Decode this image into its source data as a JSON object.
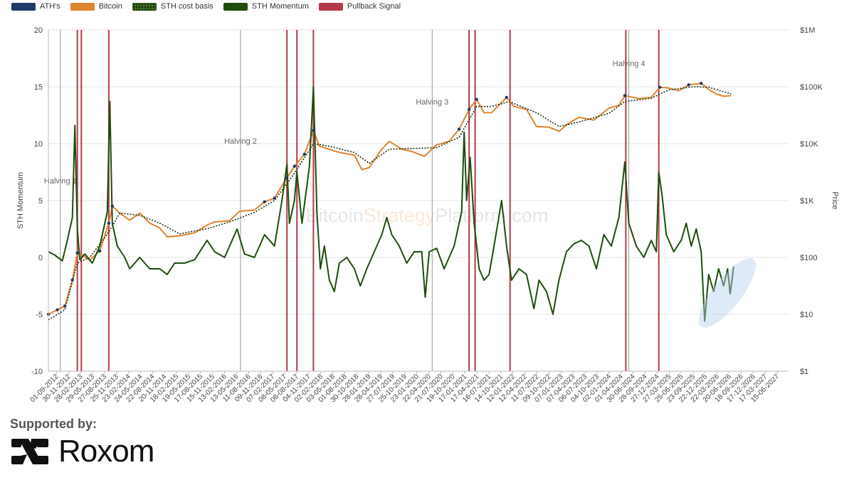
{
  "legend": [
    {
      "label": "ATH's",
      "color": "#1f3a68"
    },
    {
      "label": "Bitcoin",
      "color": "#e0842f"
    },
    {
      "label": "STH cost basis",
      "color": "#2d4d16"
    },
    {
      "label": "STH Momentum",
      "color": "#1e4d0c"
    },
    {
      "label": "Pullback Signal",
      "color": "#b33a4a"
    }
  ],
  "watermark": {
    "part1": "Bitcoin",
    "part2": "Strategy",
    "part3": "Platform.com"
  },
  "footer": {
    "supported_by": "Supported by:",
    "brand": "Roxom"
  },
  "chart_data": {
    "type": "line",
    "left_axis": {
      "label": "STH Momentum",
      "range": [
        -10,
        20
      ],
      "ticks": [
        "20",
        "15",
        "10",
        "5",
        "0",
        "-5",
        "-10"
      ]
    },
    "right_axis": {
      "label": "Price",
      "scale": "log",
      "range": [
        1,
        1000000
      ],
      "ticks": [
        "$1M",
        "$100K",
        "$10K",
        "$1K",
        "$100",
        "$10",
        "$1"
      ]
    },
    "x_tick_labels": [
      "01-09-2012",
      "30-11-2012",
      "28-02-2013",
      "29-05-2013",
      "27-08-2013",
      "25-11-2013",
      "23-02-2014",
      "24-05-2014",
      "22-08-2014",
      "20-11-2014",
      "18-02-2015",
      "19-05-2015",
      "17-08-2015",
      "15-11-2015",
      "13-02-2016",
      "13-05-2016",
      "11-08-2016",
      "09-11-2016",
      "07-02-2017",
      "08-05-2017",
      "06-08-2017",
      "04-11-2017",
      "02-02-2018",
      "03-05-2018",
      "01-08-2018",
      "30-10-2018",
      "28-01-2019",
      "28-04-2019",
      "27-07-2019",
      "25-10-2019",
      "23-01-2020",
      "22-04-2020",
      "21-07-2020",
      "19-10-2020",
      "17-01-2021",
      "17-04-2021",
      "16-07-2021",
      "14-10-2021",
      "12-01-2022",
      "12-04-2022",
      "11-07-2022",
      "09-10-2022",
      "07-01-2023",
      "07-04-2023",
      "06-07-2023",
      "04-10-2023",
      "02-01-2024",
      "01-04-2024",
      "30-06-2024",
      "28-09-2024",
      "27-12-2024",
      "27-03-2025",
      "25-06-2025",
      "23-09-2025",
      "22-12-2025",
      "22-03-2026",
      "20-06-2026",
      "18-09-2026",
      "17-12-2026",
      "17-03-2027",
      "15-06-2027"
    ],
    "x_range": [
      2012.67,
      2027.5
    ],
    "halvings": [
      {
        "label": "Halving 1",
        "date": 2012.91
      },
      {
        "label": "Halving 2",
        "date": 2016.52
      },
      {
        "label": "Halving 3",
        "date": 2020.36
      },
      {
        "label": "Halving 4",
        "date": 2024.3
      }
    ],
    "pullback_signals": [
      2013.25,
      2013.33,
      2013.88,
      2017.45,
      2017.65,
      2017.98,
      2021.1,
      2021.22,
      2021.92,
      2024.24,
      2024.9
    ],
    "series": [
      {
        "name": "Bitcoin",
        "axis": "right",
        "points": [
          [
            2012.67,
            10
          ],
          [
            2012.85,
            12
          ],
          [
            2013.0,
            14
          ],
          [
            2013.15,
            40
          ],
          [
            2013.25,
            120
          ],
          [
            2013.35,
            110
          ],
          [
            2013.5,
            90
          ],
          [
            2013.7,
            130
          ],
          [
            2013.88,
            400
          ],
          [
            2013.95,
            800
          ],
          [
            2014.1,
            600
          ],
          [
            2014.3,
            450
          ],
          [
            2014.5,
            600
          ],
          [
            2014.7,
            400
          ],
          [
            2014.9,
            330
          ],
          [
            2015.05,
            230
          ],
          [
            2015.3,
            240
          ],
          [
            2015.6,
            270
          ],
          [
            2015.85,
            370
          ],
          [
            2016.0,
            420
          ],
          [
            2016.3,
            440
          ],
          [
            2016.5,
            650
          ],
          [
            2016.8,
            680
          ],
          [
            2017.0,
            950
          ],
          [
            2017.2,
            1100
          ],
          [
            2017.45,
            2500
          ],
          [
            2017.6,
            4000
          ],
          [
            2017.8,
            6500
          ],
          [
            2017.98,
            17000
          ],
          [
            2018.1,
            9000
          ],
          [
            2018.3,
            8000
          ],
          [
            2018.5,
            7000
          ],
          [
            2018.8,
            6300
          ],
          [
            2018.95,
            3500
          ],
          [
            2019.1,
            3800
          ],
          [
            2019.35,
            8000
          ],
          [
            2019.5,
            11000
          ],
          [
            2019.75,
            8000
          ],
          [
            2019.95,
            7300
          ],
          [
            2020.2,
            6000
          ],
          [
            2020.45,
            9500
          ],
          [
            2020.7,
            11000
          ],
          [
            2020.9,
            18000
          ],
          [
            2021.1,
            40000
          ],
          [
            2021.25,
            60000
          ],
          [
            2021.4,
            35000
          ],
          [
            2021.55,
            35000
          ],
          [
            2021.85,
            65000
          ],
          [
            2022.0,
            45000
          ],
          [
            2022.25,
            40000
          ],
          [
            2022.45,
            20000
          ],
          [
            2022.7,
            19500
          ],
          [
            2022.9,
            16500
          ],
          [
            2023.1,
            23000
          ],
          [
            2023.3,
            29000
          ],
          [
            2023.6,
            26000
          ],
          [
            2023.9,
            42000
          ],
          [
            2024.1,
            47000
          ],
          [
            2024.22,
            70000
          ],
          [
            2024.5,
            62000
          ],
          [
            2024.75,
            65000
          ],
          [
            2024.92,
            98000
          ],
          [
            2025.1,
            95000
          ],
          [
            2025.3,
            85000
          ],
          [
            2025.5,
            108000
          ],
          [
            2025.75,
            115000
          ],
          [
            2025.9,
            90000
          ],
          [
            2026.05,
            75000
          ],
          [
            2026.2,
            68000
          ],
          [
            2026.35,
            70000
          ]
        ]
      },
      {
        "name": "STH cost basis",
        "axis": "right",
        "points": [
          [
            2012.67,
            8
          ],
          [
            2013.0,
            12
          ],
          [
            2013.25,
            80
          ],
          [
            2013.5,
            100
          ],
          [
            2013.88,
            280
          ],
          [
            2014.1,
            600
          ],
          [
            2014.5,
            550
          ],
          [
            2014.9,
            400
          ],
          [
            2015.3,
            260
          ],
          [
            2015.85,
            320
          ],
          [
            2016.3,
            420
          ],
          [
            2016.8,
            620
          ],
          [
            2017.2,
            1000
          ],
          [
            2017.6,
            3000
          ],
          [
            2017.98,
            10000
          ],
          [
            2018.3,
            9000
          ],
          [
            2018.8,
            7000
          ],
          [
            2019.1,
            4500
          ],
          [
            2019.5,
            8000
          ],
          [
            2019.95,
            8200
          ],
          [
            2020.45,
            8500
          ],
          [
            2020.9,
            13000
          ],
          [
            2021.25,
            45000
          ],
          [
            2021.55,
            45000
          ],
          [
            2021.9,
            55000
          ],
          [
            2022.45,
            35000
          ],
          [
            2022.9,
            20000
          ],
          [
            2023.3,
            24000
          ],
          [
            2023.9,
            34000
          ],
          [
            2024.22,
            55000
          ],
          [
            2024.75,
            63000
          ],
          [
            2025.1,
            88000
          ],
          [
            2025.6,
            100000
          ],
          [
            2025.9,
            98000
          ],
          [
            2026.35,
            75000
          ]
        ]
      },
      {
        "name": "STH Momentum",
        "axis": "left",
        "points": [
          [
            2012.67,
            0.5
          ],
          [
            2012.8,
            0.2
          ],
          [
            2012.95,
            -0.3
          ],
          [
            2013.05,
            1.5
          ],
          [
            2013.15,
            3.5
          ],
          [
            2013.2,
            11.6
          ],
          [
            2013.25,
            2.5
          ],
          [
            2013.3,
            -0.2
          ],
          [
            2013.4,
            0.3
          ],
          [
            2013.55,
            -0.5
          ],
          [
            2013.7,
            1.0
          ],
          [
            2013.85,
            4.0
          ],
          [
            2013.9,
            13.7
          ],
          [
            2013.95,
            3.0
          ],
          [
            2014.05,
            1.0
          ],
          [
            2014.2,
            0.0
          ],
          [
            2014.3,
            -1.0
          ],
          [
            2014.5,
            0.0
          ],
          [
            2014.7,
            -1.0
          ],
          [
            2014.9,
            -1.0
          ],
          [
            2015.05,
            -1.5
          ],
          [
            2015.2,
            -0.5
          ],
          [
            2015.4,
            -0.5
          ],
          [
            2015.6,
            -0.2
          ],
          [
            2015.85,
            1.5
          ],
          [
            2016.0,
            0.5
          ],
          [
            2016.2,
            0.0
          ],
          [
            2016.45,
            2.5
          ],
          [
            2016.6,
            0.3
          ],
          [
            2016.8,
            0.0
          ],
          [
            2017.0,
            2.0
          ],
          [
            2017.2,
            1.0
          ],
          [
            2017.35,
            5.0
          ],
          [
            2017.45,
            8.2
          ],
          [
            2017.5,
            3.0
          ],
          [
            2017.6,
            5.0
          ],
          [
            2017.65,
            7.5
          ],
          [
            2017.75,
            3.0
          ],
          [
            2017.9,
            8.0
          ],
          [
            2017.98,
            15.0
          ],
          [
            2018.05,
            4.0
          ],
          [
            2018.12,
            -1.0
          ],
          [
            2018.2,
            1.0
          ],
          [
            2018.3,
            -2.0
          ],
          [
            2018.4,
            -3.0
          ],
          [
            2018.5,
            -0.5
          ],
          [
            2018.65,
            0.0
          ],
          [
            2018.8,
            -1.0
          ],
          [
            2018.92,
            -2.5
          ],
          [
            2019.05,
            -1.0
          ],
          [
            2019.2,
            0.5
          ],
          [
            2019.35,
            2.0
          ],
          [
            2019.45,
            3.5
          ],
          [
            2019.55,
            2.0
          ],
          [
            2019.7,
            1.0
          ],
          [
            2019.85,
            -0.5
          ],
          [
            2020.0,
            0.5
          ],
          [
            2020.15,
            0.5
          ],
          [
            2020.22,
            -3.5
          ],
          [
            2020.3,
            0.5
          ],
          [
            2020.45,
            0.8
          ],
          [
            2020.6,
            -1.0
          ],
          [
            2020.8,
            1.0
          ],
          [
            2020.95,
            4.0
          ],
          [
            2021.0,
            11.0
          ],
          [
            2021.05,
            5.0
          ],
          [
            2021.12,
            8.8
          ],
          [
            2021.2,
            3.0
          ],
          [
            2021.3,
            -1.0
          ],
          [
            2021.4,
            -2.0
          ],
          [
            2021.5,
            -1.5
          ],
          [
            2021.6,
            1.0
          ],
          [
            2021.75,
            5.0
          ],
          [
            2021.85,
            1.0
          ],
          [
            2021.95,
            -2.0
          ],
          [
            2022.1,
            -1.0
          ],
          [
            2022.25,
            -1.5
          ],
          [
            2022.4,
            -4.5
          ],
          [
            2022.5,
            -2.0
          ],
          [
            2022.65,
            -3.0
          ],
          [
            2022.78,
            -5.0
          ],
          [
            2022.9,
            -2.0
          ],
          [
            2023.05,
            0.5
          ],
          [
            2023.2,
            1.2
          ],
          [
            2023.35,
            1.5
          ],
          [
            2023.5,
            1.0
          ],
          [
            2023.65,
            -1.0
          ],
          [
            2023.8,
            2.0
          ],
          [
            2023.95,
            1.0
          ],
          [
            2024.1,
            3.5
          ],
          [
            2024.22,
            8.4
          ],
          [
            2024.3,
            3.0
          ],
          [
            2024.45,
            1.0
          ],
          [
            2024.6,
            0.0
          ],
          [
            2024.75,
            1.5
          ],
          [
            2024.85,
            0.5
          ],
          [
            2024.9,
            7.5
          ],
          [
            2024.97,
            5.3
          ],
          [
            2025.05,
            2.0
          ],
          [
            2025.2,
            0.5
          ],
          [
            2025.35,
            1.5
          ],
          [
            2025.45,
            3.0
          ],
          [
            2025.55,
            1.0
          ],
          [
            2025.65,
            2.5
          ],
          [
            2025.75,
            0.5
          ],
          [
            2025.82,
            -5.6
          ],
          [
            2025.9,
            -1.5
          ],
          [
            2026.0,
            -3.0
          ],
          [
            2026.1,
            -1.0
          ],
          [
            2026.2,
            -2.5
          ],
          [
            2026.28,
            -1.0
          ],
          [
            2026.33,
            -3.2
          ],
          [
            2026.4,
            -0.8
          ]
        ]
      }
    ]
  }
}
